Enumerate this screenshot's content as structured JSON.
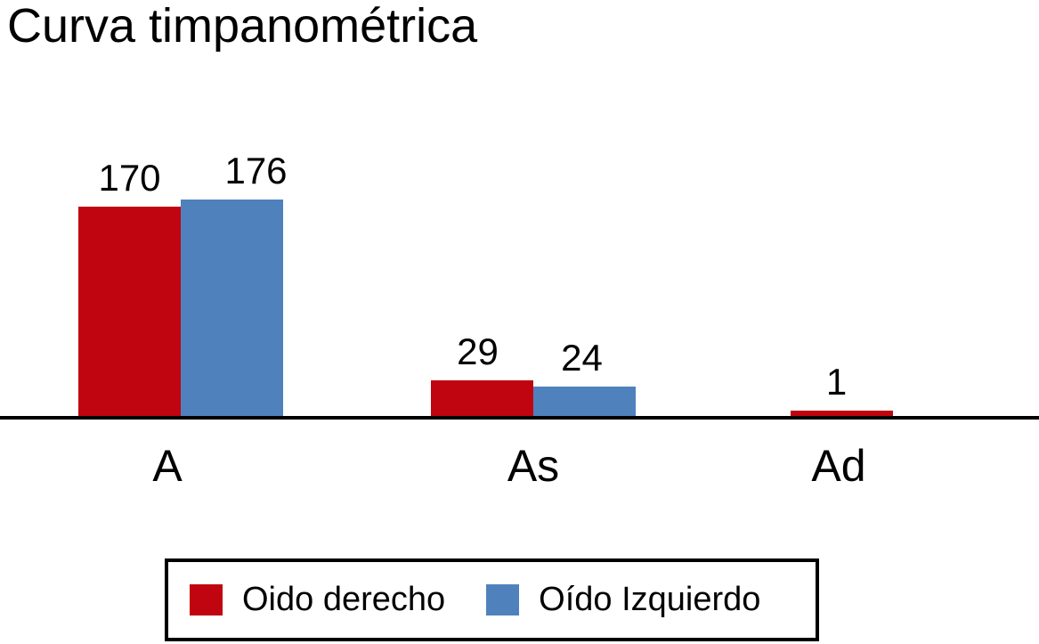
{
  "chart_data": {
    "type": "bar",
    "title": "Curva timpanométrica",
    "categories": [
      "A",
      "As",
      "Ad"
    ],
    "series": [
      {
        "name": "Oido derecho",
        "color": "#C00410",
        "values": [
          170,
          29,
          1
        ]
      },
      {
        "name": "Oído Izquierdo",
        "color": "#4F81BD",
        "values": [
          176,
          24,
          0
        ]
      }
    ],
    "value_labels_shown": true,
    "xlabel": "",
    "ylabel": "",
    "ylim": [
      0,
      176
    ],
    "grid": false,
    "legend_position": "bottom",
    "axis_color": "#000000",
    "background_color": "#FFFFFF",
    "text_color": "#000000"
  }
}
